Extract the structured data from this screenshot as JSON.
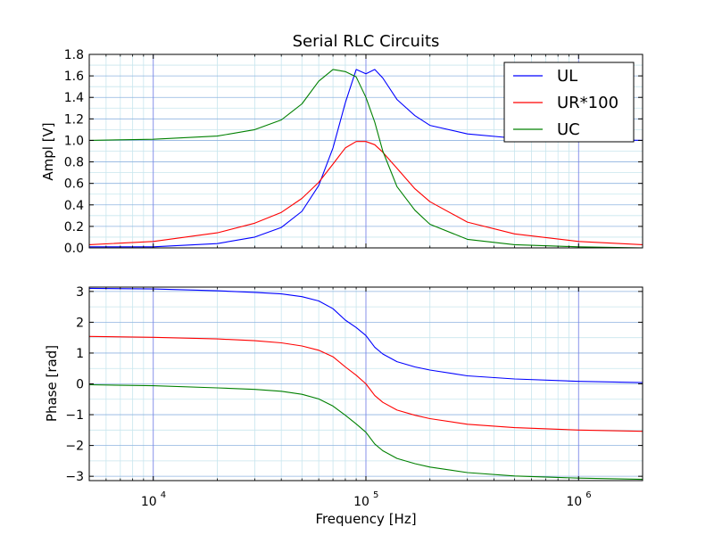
{
  "chart_data": [
    {
      "type": "line",
      "title": "Serial RLC Circuits",
      "xlabel": "",
      "ylabel": "Ampl [V]",
      "x_scale": "log",
      "xlim": [
        5000,
        2000000
      ],
      "ylim": [
        0,
        1.8
      ],
      "yticks": [
        "0.0",
        "0.2",
        "0.4",
        "0.6",
        "0.8",
        "1.0",
        "1.2",
        "1.4",
        "1.6",
        "1.8"
      ],
      "grid": true,
      "legend_position": "top-right",
      "x": [
        5000,
        10000,
        20000,
        30000,
        40000,
        50000,
        60000,
        70000,
        80000,
        90000,
        100000,
        110000,
        120000,
        140000,
        170000,
        200000,
        300000,
        500000,
        1000000,
        2000000
      ],
      "series": [
        {
          "name": "UL",
          "color": "#0000ff",
          "values": [
            0.01,
            0.01,
            0.04,
            0.1,
            0.19,
            0.34,
            0.58,
            0.93,
            1.35,
            1.66,
            1.62,
            1.66,
            1.58,
            1.38,
            1.23,
            1.14,
            1.06,
            1.02,
            1.01,
            1.0
          ]
        },
        {
          "name": "UR*100",
          "color": "#ff0000",
          "values": [
            0.03,
            0.06,
            0.14,
            0.23,
            0.33,
            0.46,
            0.61,
            0.78,
            0.93,
            0.99,
            0.99,
            0.96,
            0.89,
            0.74,
            0.55,
            0.43,
            0.24,
            0.13,
            0.06,
            0.03
          ]
        },
        {
          "name": "UC",
          "color": "#008000",
          "values": [
            1.0,
            1.01,
            1.04,
            1.1,
            1.19,
            1.34,
            1.55,
            1.66,
            1.64,
            1.59,
            1.4,
            1.17,
            0.9,
            0.57,
            0.35,
            0.22,
            0.08,
            0.03,
            0.01,
            0.0
          ]
        }
      ]
    },
    {
      "type": "line",
      "xlabel": "Frequency [Hz]",
      "ylabel": "Phase [rad]",
      "x_scale": "log",
      "xlim": [
        5000,
        2000000
      ],
      "ylim": [
        -3.14,
        3.14
      ],
      "yticks": [
        "−3",
        "−2",
        "−1",
        "0",
        "1",
        "2",
        "3"
      ],
      "xticks": [
        {
          "base": "10",
          "exp": "4",
          "value": 10000
        },
        {
          "base": "10",
          "exp": "5",
          "value": 100000
        },
        {
          "base": "10",
          "exp": "6",
          "value": 1000000
        }
      ],
      "grid": true,
      "x": [
        5000,
        10000,
        20000,
        30000,
        40000,
        50000,
        60000,
        70000,
        80000,
        90000,
        100000,
        110000,
        120000,
        140000,
        170000,
        200000,
        300000,
        500000,
        1000000,
        2000000
      ],
      "series": [
        {
          "color": "#0000ff",
          "values": [
            3.1,
            3.08,
            3.02,
            2.97,
            2.92,
            2.83,
            2.69,
            2.44,
            2.07,
            1.83,
            1.57,
            1.19,
            0.97,
            0.72,
            0.55,
            0.45,
            0.26,
            0.16,
            0.08,
            0.04
          ]
        },
        {
          "color": "#ff0000",
          "values": [
            1.54,
            1.51,
            1.46,
            1.4,
            1.33,
            1.23,
            1.09,
            0.88,
            0.55,
            0.28,
            0.0,
            -0.38,
            -0.6,
            -0.85,
            -1.02,
            -1.13,
            -1.31,
            -1.42,
            -1.5,
            -1.54
          ]
        },
        {
          "color": "#008000",
          "values": [
            -0.03,
            -0.06,
            -0.13,
            -0.18,
            -0.24,
            -0.34,
            -0.49,
            -0.72,
            -1.02,
            -1.3,
            -1.57,
            -1.95,
            -2.17,
            -2.42,
            -2.59,
            -2.7,
            -2.88,
            -2.99,
            -3.06,
            -3.1
          ]
        }
      ]
    }
  ]
}
